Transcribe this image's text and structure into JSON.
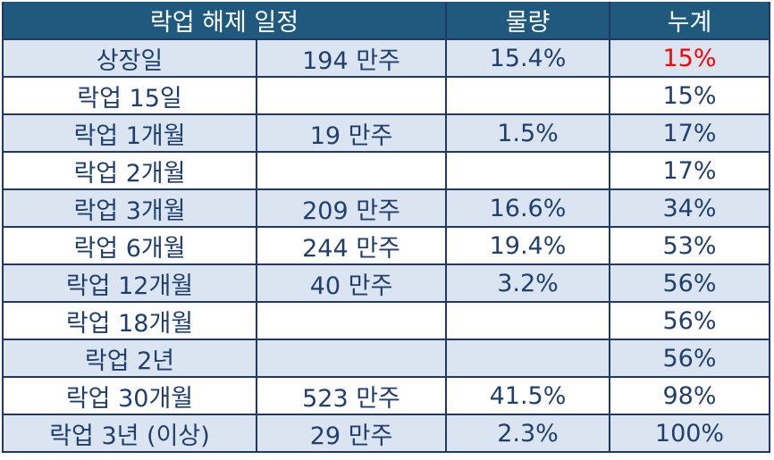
{
  "table": {
    "header": [
      "락업 해제 일정",
      "물량",
      "누계"
    ],
    "rows": [
      {
        "label": "상장일",
        "shares": "194 만주",
        "ratio": "15.4%",
        "cumulative": "15%"
      },
      {
        "label": "락업 15일",
        "cumulative": "15%"
      },
      {
        "label": "락업 1개월",
        "shares": "19 만주",
        "ratio": "1.5%",
        "cumulative": "17%"
      },
      {
        "label": "락업 2개월",
        "cumulative": "17%"
      },
      {
        "label": "락업 3개월",
        "shares": "209 만주",
        "ratio": "16.6%",
        "cumulative": "34%"
      },
      {
        "label": "락업 6개월",
        "shares": "244 만주",
        "ratio": "19.4%",
        "cumulative": "53%"
      },
      {
        "label": "락업 12개월",
        "shares": "40 만주",
        "ratio": "3.2%",
        "cumulative": "56%"
      },
      {
        "label": "락업 18개월",
        "cumulative": "56%"
      },
      {
        "label": "락업 2년",
        "cumulative": "56%"
      },
      {
        "label": "락업 30개월",
        "shares": "523 만주",
        "ratio": "41.5%",
        "cumulative": "98%"
      },
      {
        "label": "락업 3년 (이상)",
        "shares": "29 만주",
        "ratio": "2.3%",
        "cumulative": "100%"
      }
    ]
  }
}
